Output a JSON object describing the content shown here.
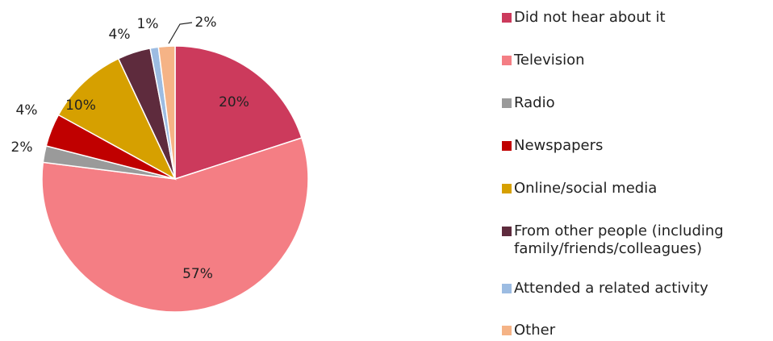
{
  "chart_data": {
    "type": "pie",
    "categories": [
      "Did not hear about it",
      "Television",
      "Radio",
      "Newspapers",
      "Online/social media",
      "From other people (including family/friends/colleagues)",
      "Attended a related activity",
      "Other"
    ],
    "values": [
      20,
      57,
      2,
      4,
      10,
      4,
      1,
      2
    ],
    "value_labels": [
      "20%",
      "57%",
      "2%",
      "4%",
      "10%",
      "4%",
      "1%",
      "2%"
    ],
    "colors": [
      "#cc3a5c",
      "#f47e84",
      "#9a9a9a",
      "#c00000",
      "#d6a000",
      "#5e2b3d",
      "#9cbce2",
      "#f5b386"
    ],
    "legend": "right"
  }
}
